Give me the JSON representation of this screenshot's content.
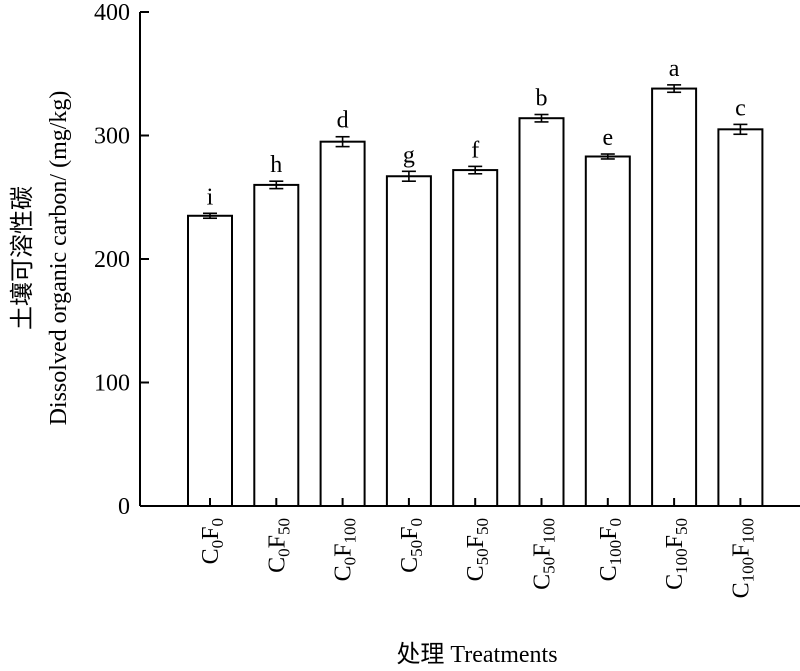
{
  "chart_data": {
    "type": "bar",
    "categories": [
      {
        "c": "0",
        "f": "0"
      },
      {
        "c": "0",
        "f": "50"
      },
      {
        "c": "0",
        "f": "100"
      },
      {
        "c": "50",
        "f": "0"
      },
      {
        "c": "50",
        "f": "50"
      },
      {
        "c": "50",
        "f": "100"
      },
      {
        "c": "100",
        "f": "0"
      },
      {
        "c": "100",
        "f": "50"
      },
      {
        "c": "100",
        "f": "100"
      }
    ],
    "values": [
      235,
      260,
      295,
      267,
      272,
      314,
      283,
      338,
      305
    ],
    "errors": [
      2,
      3,
      4,
      4,
      3,
      3,
      2,
      3,
      4
    ],
    "significance": [
      "i",
      "h",
      "d",
      "g",
      "f",
      "b",
      "e",
      "a",
      "c"
    ],
    "ylabel_cn": "土壤可溶性碳",
    "ylabel_en": "Dissolved organic carbon/ (mg/kg)",
    "xlabel": "处理 Treatments",
    "ylim": [
      0,
      400
    ],
    "yticks": [
      0,
      100,
      200,
      300,
      400
    ],
    "grid": false,
    "legend": "none",
    "colors": {
      "bar_fill": "#ffffff",
      "bar_stroke": "#000000"
    }
  }
}
